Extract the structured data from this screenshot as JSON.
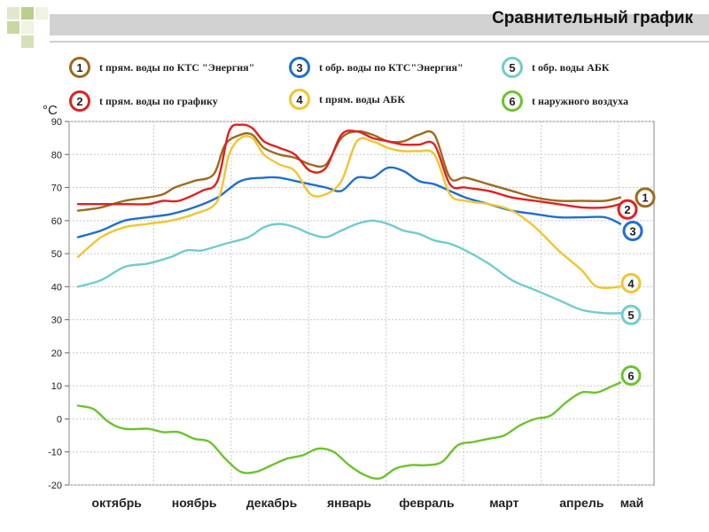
{
  "title": "Сравнительный график",
  "colors": {
    "s1": "#9b6b1e",
    "s2": "#e02020",
    "s3": "#1e6fd0",
    "s4": "#f0c530",
    "s5": "#72cccc",
    "s6": "#6dc22e"
  },
  "chart_data": {
    "type": "line",
    "ylabel": "°C",
    "ylim": [
      -20,
      90
    ],
    "yticks": [
      90,
      80,
      70,
      60,
      50,
      40,
      30,
      20,
      10,
      0,
      -10,
      -20
    ],
    "x_axis": {
      "months": [
        "октябрь",
        "ноябрь",
        "декабрь",
        "январь",
        "февраль",
        "март",
        "апрель",
        "май"
      ]
    },
    "grid": true,
    "series": [
      {
        "id": "1",
        "name": "t прям. воды по КТС \"Энергия\"",
        "color_key": "s1",
        "x": [
          0,
          0.3,
          0.6,
          0.9,
          1.1,
          1.25,
          1.5,
          1.75,
          1.9,
          2.1,
          2.25,
          2.4,
          2.6,
          2.8,
          3.0,
          3.2,
          3.4,
          3.6,
          3.8,
          4.0,
          4.2,
          4.4,
          4.6,
          4.8,
          5.0,
          5.3,
          5.6,
          5.9,
          6.2,
          6.5,
          6.8,
          7.0
        ],
        "y": [
          63,
          64,
          66,
          67,
          68,
          70,
          72,
          74,
          83,
          86,
          86,
          82,
          80,
          79,
          77,
          77,
          85,
          87,
          86,
          84,
          84,
          86,
          86,
          73,
          73,
          71,
          69,
          67,
          66,
          66,
          66,
          67
        ]
      },
      {
        "id": "2",
        "name": "t прям. воды по графику",
        "color_key": "s2",
        "x": [
          0,
          0.3,
          0.6,
          0.9,
          1.1,
          1.3,
          1.6,
          1.8,
          1.95,
          2.1,
          2.25,
          2.4,
          2.6,
          2.8,
          3.0,
          3.2,
          3.4,
          3.6,
          3.8,
          4.0,
          4.2,
          4.4,
          4.6,
          4.8,
          5.0,
          5.3,
          5.6,
          5.9,
          6.2,
          6.5,
          6.8,
          7.0
        ],
        "y": [
          65,
          65,
          65,
          65,
          66,
          66,
          69,
          72,
          87,
          89,
          88,
          84,
          82,
          80,
          75,
          76,
          86,
          87,
          85,
          84,
          83,
          83,
          83,
          71,
          70,
          69,
          67,
          66,
          65,
          64,
          64,
          65
        ]
      },
      {
        "id": "3",
        "name": "t обр. воды по КТС\"Энергия\"",
        "color_key": "s3",
        "x": [
          0,
          0.3,
          0.6,
          0.9,
          1.2,
          1.5,
          1.8,
          2.1,
          2.4,
          2.6,
          2.8,
          3.0,
          3.2,
          3.4,
          3.6,
          3.8,
          4.0,
          4.2,
          4.4,
          4.6,
          4.8,
          5.0,
          5.3,
          5.6,
          5.9,
          6.2,
          6.5,
          6.8,
          7.0
        ],
        "y": [
          55,
          57,
          60,
          61,
          62,
          64,
          67,
          72,
          73,
          73,
          72,
          71,
          70,
          69,
          73,
          73,
          76,
          75,
          72,
          71,
          69,
          67,
          65,
          63,
          62,
          61,
          61,
          61,
          59
        ]
      },
      {
        "id": "4",
        "name": "t прям. воды АБК",
        "color_key": "s4",
        "x": [
          0,
          0.3,
          0.6,
          0.9,
          1.2,
          1.5,
          1.8,
          1.95,
          2.1,
          2.25,
          2.4,
          2.6,
          2.8,
          3.0,
          3.2,
          3.4,
          3.6,
          3.8,
          4.0,
          4.2,
          4.4,
          4.6,
          4.8,
          5.0,
          5.3,
          5.6,
          5.9,
          6.2,
          6.5,
          6.7,
          7.0
        ],
        "y": [
          49,
          55,
          58,
          59,
          60,
          62,
          66,
          80,
          85,
          85,
          80,
          77,
          75,
          68,
          68,
          72,
          84,
          84,
          82,
          81,
          81,
          80,
          68,
          66,
          65,
          63,
          58,
          51,
          45,
          40,
          40
        ]
      },
      {
        "id": "5",
        "name": "t обр. воды АБК",
        "color_key": "s5",
        "x": [
          0,
          0.3,
          0.6,
          0.9,
          1.2,
          1.4,
          1.6,
          1.9,
          2.2,
          2.4,
          2.6,
          2.8,
          3.0,
          3.2,
          3.4,
          3.6,
          3.8,
          4.0,
          4.2,
          4.4,
          4.6,
          4.8,
          5.0,
          5.3,
          5.6,
          5.9,
          6.2,
          6.5,
          6.8,
          7.0
        ],
        "y": [
          40,
          42,
          46,
          47,
          49,
          51,
          51,
          53,
          55,
          58,
          59,
          58,
          56,
          55,
          57,
          59,
          60,
          59,
          57,
          56,
          54,
          53,
          51,
          47,
          42,
          39,
          36,
          33,
          32,
          32
        ]
      },
      {
        "id": "6",
        "name": "t наружного воздуха",
        "color_key": "s6",
        "x": [
          0,
          0.2,
          0.4,
          0.6,
          0.9,
          1.1,
          1.3,
          1.5,
          1.7,
          1.9,
          2.1,
          2.3,
          2.5,
          2.7,
          2.9,
          3.1,
          3.3,
          3.5,
          3.7,
          3.9,
          4.1,
          4.3,
          4.5,
          4.7,
          4.9,
          5.1,
          5.3,
          5.5,
          5.7,
          5.9,
          6.1,
          6.3,
          6.5,
          6.7,
          6.9,
          7.0
        ],
        "y": [
          4,
          3,
          -1,
          -3,
          -3,
          -4,
          -4,
          -6,
          -7,
          -12,
          -16,
          -16,
          -14,
          -12,
          -11,
          -9,
          -10,
          -14,
          -17,
          -18,
          -15,
          -14,
          -14,
          -13,
          -8,
          -7,
          -6,
          -5,
          -2,
          0,
          1,
          5,
          8,
          8,
          10,
          11
        ]
      }
    ]
  }
}
